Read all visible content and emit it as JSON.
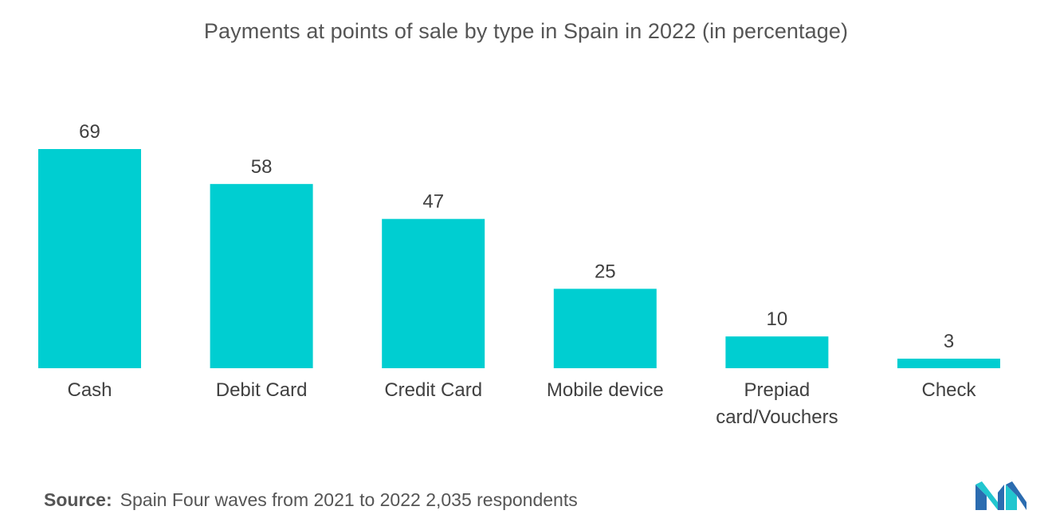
{
  "chart_data": {
    "type": "bar",
    "title": "Payments at points of sale by type in Spain in 2022 (in percentage)",
    "categories": [
      "Cash",
      "Debit Card",
      "Credit Card",
      "Mobile device",
      "Prepiad card/Vouchers",
      "Check"
    ],
    "category_lines": [
      [
        "Cash"
      ],
      [
        "Debit Card"
      ],
      [
        "Credit Card"
      ],
      [
        "Mobile device"
      ],
      [
        "Prepiad",
        "card/Vouchers"
      ],
      [
        "Check"
      ]
    ],
    "values": [
      69,
      58,
      47,
      25,
      10,
      3
    ],
    "data_labels": [
      "69",
      "58",
      "47",
      "25",
      "10",
      "3"
    ],
    "ylim": [
      0,
      69
    ],
    "grid": false,
    "bar_color": "#00CED1"
  },
  "footer": {
    "source_label": "Source:",
    "source_text": "Spain Four waves from 2021 to 2022 2,035 respondents"
  },
  "logo": {
    "icon": "mordor-intelligence-logo-icon",
    "colors": [
      "#2B6CB0",
      "#21C6CF"
    ]
  }
}
